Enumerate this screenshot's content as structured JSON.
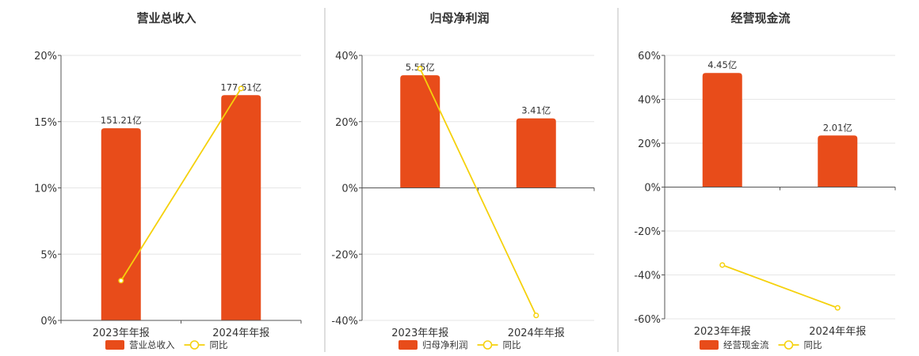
{
  "colors": {
    "bar": "#e84c1a",
    "line": "#f5d10c",
    "grid": "#e6e6e6",
    "axis": "#555555",
    "text": "#333333"
  },
  "chart_data": [
    {
      "type": "bar",
      "title": "营业总收入",
      "categories": [
        "2023年年报",
        "2024年年报"
      ],
      "ylim": [
        0,
        20
      ],
      "yticks": [
        0,
        5,
        10,
        15,
        20
      ],
      "tick_labels": [
        "0%",
        "5%",
        "10%",
        "15%",
        "20%"
      ],
      "bar_values": [
        14.5,
        17.0
      ],
      "bar_labels": [
        "151.21亿",
        "177.61亿"
      ],
      "yoy_values": [
        3.0,
        17.5
      ],
      "legend": [
        "营业总收入",
        "同比"
      ],
      "grid": true,
      "legend_position": "bottom"
    },
    {
      "type": "bar",
      "title": "归母净利润",
      "categories": [
        "2023年年报",
        "2024年年报"
      ],
      "ylim": [
        -40,
        40
      ],
      "yticks": [
        -40,
        -20,
        0,
        20,
        40
      ],
      "tick_labels": [
        "-40%",
        "-20%",
        "0%",
        "20%",
        "40%"
      ],
      "bar_values": [
        34,
        21
      ],
      "bar_labels": [
        "5.55亿",
        "3.41亿"
      ],
      "yoy_values": [
        36,
        -38.5
      ],
      "legend": [
        "归母净利润",
        "同比"
      ],
      "grid": true,
      "legend_position": "bottom"
    },
    {
      "type": "bar",
      "title": "经营现金流",
      "categories": [
        "2023年年报",
        "2024年年报"
      ],
      "ylim": [
        -60,
        60
      ],
      "yticks": [
        -60,
        -40,
        -20,
        0,
        20,
        40,
        60
      ],
      "tick_labels": [
        "-60%",
        "-40%",
        "-20%",
        "0%",
        "20%",
        "40%",
        "60%"
      ],
      "bar_values": [
        52,
        23.5
      ],
      "bar_labels": [
        "4.45亿",
        "2.01亿"
      ],
      "yoy_values": [
        -35.5,
        -55
      ],
      "legend": [
        "经营现金流",
        "同比"
      ],
      "grid": true,
      "legend_position": "bottom"
    }
  ]
}
